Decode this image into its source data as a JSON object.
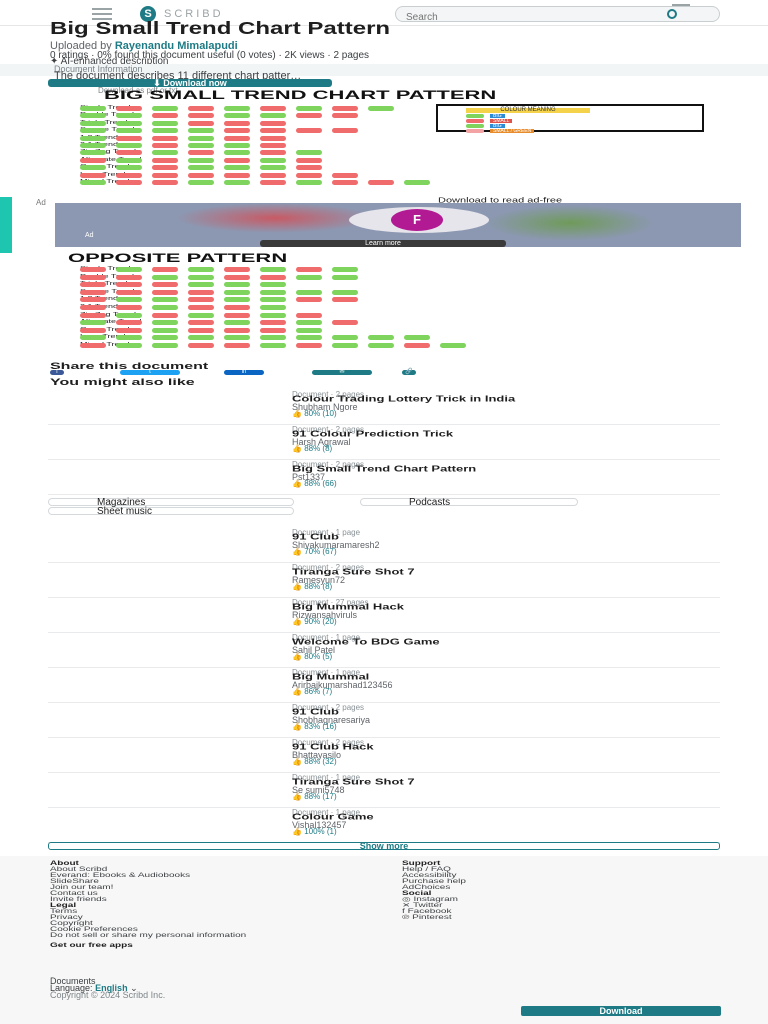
{
  "topbar": {
    "logo_text": "SCRIBD",
    "search_placeholder": "Search"
  },
  "document": {
    "title": "Big Small Trend Chart Pattern",
    "uploaded_by_prefix": "Uploaded by",
    "uploader": "Rayenandu Mimalapudi",
    "meta": "0 ratings · 0% found this document useful (0 votes) · 2K views · 2 pages",
    "ai_label": "AI-enhanced description",
    "description_label": "Document Information",
    "description": "The document describes 11 different chart patter…",
    "download_label": "Download now",
    "download_sub": "Download as pdf or txt"
  },
  "chart1": {
    "title": "BIG SMALL TREND CHART PATTERN",
    "rows": [
      {
        "label": "Single Trend",
        "pills": [
          "g",
          "r",
          "g",
          "r",
          "g",
          "r",
          "g",
          "r",
          "g"
        ]
      },
      {
        "label": "Double Trend",
        "pills": [
          "g",
          "g",
          "r",
          "r",
          "g",
          "g",
          "r",
          "r"
        ]
      },
      {
        "label": "Triple Trend",
        "pills": [
          "g",
          "g",
          "g",
          "r",
          "r",
          "r"
        ]
      },
      {
        "label": "Square Trend",
        "pills": [
          "g",
          "g",
          "g",
          "g",
          "r",
          "r",
          "r",
          "r"
        ]
      },
      {
        "label": "1:2 Trend",
        "pills": [
          "g",
          "r",
          "r",
          "g",
          "r",
          "r"
        ]
      },
      {
        "label": "2:1 Trend",
        "pills": [
          "g",
          "g",
          "r",
          "g",
          "g",
          "r"
        ]
      },
      {
        "label": "Zig Zag Trend",
        "pills": [
          "g",
          "r",
          "g",
          "r",
          "g",
          "r",
          "g"
        ]
      },
      {
        "label": "Alternate Trend",
        "pills": [
          "r",
          "g",
          "r",
          "g",
          "r",
          "g",
          "r"
        ]
      },
      {
        "label": "Curve Trend",
        "pills": [
          "g",
          "g",
          "r",
          "g",
          "g",
          "g",
          "r"
        ]
      },
      {
        "label": "Long Trend",
        "pills": [
          "r",
          "r",
          "r",
          "r",
          "r",
          "r",
          "r",
          "r"
        ]
      },
      {
        "label": "Mixed Trend",
        "pills": [
          "g",
          "r",
          "r",
          "g",
          "g",
          "r",
          "g",
          "r",
          "r",
          "g"
        ]
      }
    ],
    "legend": {
      "heading": "COLOUR MEANING",
      "items": [
        {
          "label": "BIG",
          "chip": "#7ed45c",
          "tag": "#2e8cd6"
        },
        {
          "label": "SMALL",
          "chip": "#f06b6b",
          "tag": "#e0534a"
        },
        {
          "label": "BIG",
          "chip": "#7ed45c",
          "tag": "#2e8cd6"
        },
        {
          "label": "SMALL / GREEN",
          "chip": "#f3a3a3",
          "tag": "#e88b2a"
        }
      ]
    }
  },
  "ad": {
    "label": "Ad",
    "cta_top": "Download to read ad-free",
    "logo": "F",
    "caption": "Ad",
    "learn_more": "Learn more"
  },
  "chart2": {
    "title": "OPPOSITE PATTERN",
    "rows": [
      {
        "label": "Single Trend",
        "pills": [
          "r",
          "g",
          "r",
          "g",
          "r",
          "g",
          "r",
          "g"
        ]
      },
      {
        "label": "Double Trend",
        "pills": [
          "r",
          "r",
          "g",
          "g",
          "r",
          "r",
          "g",
          "g"
        ]
      },
      {
        "label": "Triple Trend",
        "pills": [
          "r",
          "r",
          "r",
          "g",
          "g",
          "g"
        ]
      },
      {
        "label": "Square Trend",
        "pills": [
          "r",
          "r",
          "r",
          "r",
          "g",
          "g",
          "g",
          "g"
        ]
      },
      {
        "label": "1:2 Trend",
        "pills": [
          "r",
          "g",
          "g",
          "r",
          "g",
          "g",
          "r",
          "r"
        ]
      },
      {
        "label": "2:1 Trend",
        "pills": [
          "r",
          "r",
          "g",
          "r",
          "r",
          "g"
        ]
      },
      {
        "label": "Zig Zag Trend",
        "pills": [
          "r",
          "g",
          "r",
          "g",
          "r",
          "g",
          "r"
        ]
      },
      {
        "label": "Alternate Trend",
        "pills": [
          "g",
          "r",
          "g",
          "r",
          "g",
          "r",
          "g",
          "r"
        ]
      },
      {
        "label": "Curve Trend",
        "pills": [
          "r",
          "r",
          "g",
          "r",
          "r",
          "r",
          "g"
        ]
      },
      {
        "label": "Long Trend",
        "pills": [
          "g",
          "g",
          "g",
          "g",
          "g",
          "g",
          "g",
          "g",
          "g",
          "g"
        ]
      },
      {
        "label": "Mixed Trend",
        "pills": [
          "r",
          "g",
          "g",
          "r",
          "r",
          "g",
          "r",
          "g",
          "g",
          "r",
          "g"
        ]
      }
    ]
  },
  "share": {
    "title": "Share this document",
    "icons": [
      "f",
      "t",
      "in",
      "✉",
      "🔗"
    ]
  },
  "also_like": {
    "title": "You might also like",
    "items": [
      {
        "kind": "Document · 2 pages",
        "title": "Colour Trading Lottery Trick in India",
        "author": "Shubham Ngore",
        "rating": "80% (10)"
      },
      {
        "kind": "Document · 2 pages",
        "title": "91 Colour Prediction Trick",
        "author": "Harsh Agrawal",
        "rating": "88% (8)"
      },
      {
        "kind": "Document · 2 pages",
        "title": "Big Small Trend Chart Pattern",
        "author": "Pst1337",
        "rating": "88% (66)"
      }
    ],
    "chips": [
      "Magazines",
      "Podcasts",
      "Sheet music"
    ],
    "items2": [
      {
        "kind": "Document · 1 page",
        "title": "91 Club",
        "author": "Shivakumaramaresh2",
        "rating": "70% (67)"
      },
      {
        "kind": "Document · 2 pages",
        "title": "Tiranga Sure Shot 7",
        "author": "Ramesyun72",
        "rating": "88% (8)"
      },
      {
        "kind": "Document · 27 pages",
        "title": "Big Mummal Hack",
        "author": "Rizwansahviruls",
        "rating": "90% (20)"
      },
      {
        "kind": "Document · 1 page",
        "title": "Welcome To BDG Game",
        "author": "Sahil Patel",
        "rating": "80% (5)"
      },
      {
        "kind": "Document · 1 page",
        "title": "Big Mummal",
        "author": "Arirbajkumarshad123456",
        "rating": "86% (7)"
      },
      {
        "kind": "Document · 2 pages",
        "title": "91 Club",
        "author": "Shobhagnaresariya",
        "rating": "83% (16)"
      },
      {
        "kind": "Document · 2 pages",
        "title": "91 Club Hack",
        "author": "Bhattayasilo",
        "rating": "88% (32)"
      },
      {
        "kind": "Document · 1 page",
        "title": "Tiranga Sure Shot 7",
        "author": "Se sumi5748",
        "rating": "88% (17)"
      },
      {
        "kind": "Document · 1 page",
        "title": "Colour Game",
        "author": "Vishal132457",
        "rating": "100% (1)"
      }
    ],
    "show_more": "Show more"
  },
  "footer": {
    "about_heading": "About",
    "about": [
      "About Scribd",
      "Everand: Ebooks & Audiobooks",
      "SlideShare",
      "Join our team!",
      "Contact us",
      "Invite friends"
    ],
    "legal_heading": "Legal",
    "legal": [
      "Terms",
      "Privacy",
      "Copyright",
      "Cookie Preferences",
      "Do not sell or share my personal information"
    ],
    "support_heading": "Support",
    "support": [
      "Help / FAQ",
      "Accessibility",
      "Purchase help",
      "AdChoices"
    ],
    "social_heading": "Social",
    "social": [
      "Instagram",
      "Twitter",
      "Facebook",
      "Pinterest"
    ],
    "get_apps": "Get our free apps",
    "documents": "Documents",
    "language_prefix": "Language:",
    "language": "English",
    "copyright": "Copyright © 2024 Scribd Inc.",
    "download": "Download"
  }
}
